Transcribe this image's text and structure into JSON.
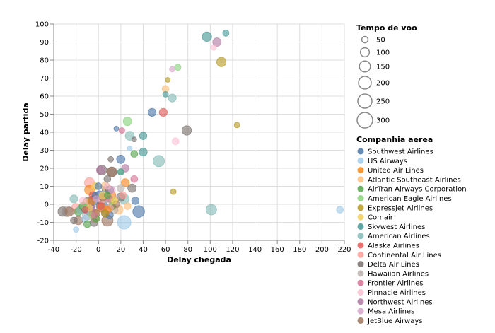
{
  "chart_data": {
    "type": "scatter",
    "xlabel": "Delay chegada",
    "ylabel": "Delay partida",
    "xlim": [
      -40,
      220
    ],
    "ylim": [
      -20,
      100
    ],
    "x_ticks": [
      -40,
      -20,
      0,
      20,
      40,
      60,
      80,
      100,
      120,
      140,
      160,
      180,
      200,
      220
    ],
    "y_ticks": [
      -20,
      -10,
      0,
      10,
      20,
      30,
      40,
      50,
      60,
      70,
      80,
      90,
      100
    ],
    "grid": true,
    "size_legend": {
      "title": "Tempo de voo",
      "values": [
        50,
        100,
        150,
        200,
        250,
        300
      ]
    },
    "color_legend": {
      "title": "Companhia aerea"
    },
    "series": [
      {
        "name": "Southwest Airlines",
        "color": "#4c78a8",
        "points": [
          [
            -5,
            2,
            120
          ],
          [
            1,
            5,
            100
          ],
          [
            7,
            8,
            90
          ],
          [
            16,
            42,
            30
          ],
          [
            48,
            51,
            80
          ],
          [
            36,
            -4,
            170
          ],
          [
            -8,
            -3,
            160
          ],
          [
            4,
            -1,
            140
          ],
          [
            20,
            25,
            90
          ],
          [
            0,
            10,
            60
          ],
          [
            10,
            -6,
            70
          ],
          [
            -3,
            5,
            50
          ],
          [
            33,
            2,
            70
          ]
        ]
      },
      {
        "name": "US Airways",
        "color": "#9ecae9",
        "points": [
          [
            216,
            -3,
            60
          ],
          [
            -20,
            -14,
            40
          ],
          [
            23,
            -10,
            230
          ],
          [
            -12,
            -8,
            60
          ],
          [
            3,
            -2,
            90
          ],
          [
            28,
            31,
            30
          ],
          [
            4,
            5,
            80
          ]
        ]
      },
      {
        "name": "United Air Lines",
        "color": "#f58518",
        "points": [
          [
            -8,
            8,
            120
          ],
          [
            3,
            -2,
            90
          ],
          [
            12,
            5,
            80
          ],
          [
            -4,
            -5,
            100
          ],
          [
            24,
            12,
            80
          ],
          [
            8,
            -3,
            60
          ],
          [
            -6,
            2,
            80
          ]
        ]
      },
      {
        "name": "Atlantic Southeast Airlines",
        "color": "#ffbf79",
        "points": [
          [
            60,
            64,
            60
          ],
          [
            -10,
            0,
            140
          ],
          [
            18,
            -3,
            100
          ],
          [
            6,
            10,
            90
          ],
          [
            -3,
            -8,
            80
          ],
          [
            14,
            2,
            70
          ],
          [
            26,
            -1,
            60
          ]
        ]
      },
      {
        "name": "AirTran Airways Corporation",
        "color": "#54a24b",
        "points": [
          [
            -10,
            -11,
            60
          ],
          [
            -18,
            -4,
            80
          ],
          [
            -2,
            -8,
            60
          ],
          [
            12,
            -1,
            70
          ],
          [
            32,
            28,
            60
          ],
          [
            -14,
            -1,
            70
          ],
          [
            8,
            5,
            50
          ]
        ]
      },
      {
        "name": "American Eagle Airlines",
        "color": "#88d27a",
        "points": [
          [
            26,
            46,
            90
          ],
          [
            71,
            76,
            50
          ],
          [
            20,
            18,
            50
          ],
          [
            -6,
            -6,
            50
          ],
          [
            12,
            2,
            70
          ],
          [
            -12,
            -2,
            50
          ]
        ]
      },
      {
        "name": "Expressjet Airlines",
        "color": "#b79a20",
        "points": [
          [
            110,
            79,
            110
          ],
          [
            124,
            44,
            40
          ],
          [
            67,
            7,
            40
          ],
          [
            62,
            69,
            30
          ],
          [
            6,
            -5,
            60
          ]
        ]
      },
      {
        "name": "Comair",
        "color": "#f2cf5b",
        "points": [
          [
            -3,
            10,
            70
          ],
          [
            4,
            5,
            70
          ],
          [
            14,
            2,
            50
          ],
          [
            -8,
            -2,
            50
          ]
        ]
      },
      {
        "name": "Skywest Airlines",
        "color": "#439894",
        "points": [
          [
            97,
            93,
            110
          ],
          [
            114,
            95,
            50
          ],
          [
            40,
            38,
            70
          ],
          [
            40,
            29,
            80
          ],
          [
            -12,
            -3,
            60
          ],
          [
            20,
            18,
            50
          ],
          [
            60,
            61,
            40
          ]
        ]
      },
      {
        "name": "American Airlines",
        "color": "#83bcb6",
        "points": [
          [
            101,
            -3,
            140
          ],
          [
            54,
            24,
            160
          ],
          [
            28,
            38,
            100
          ],
          [
            66,
            59,
            80
          ],
          [
            -22,
            3,
            80
          ],
          [
            23,
            3,
            120
          ],
          [
            -16,
            -3,
            80
          ]
        ]
      },
      {
        "name": "Alaska Airlines",
        "color": "#e45756",
        "points": [
          [
            58,
            51,
            80
          ],
          [
            -5,
            5,
            70
          ],
          [
            2,
            -1,
            60
          ],
          [
            -12,
            -3,
            50
          ]
        ]
      },
      {
        "name": "Continental Air Lines",
        "color": "#ff9d98",
        "points": [
          [
            -8,
            12,
            130
          ],
          [
            -20,
            -2,
            100
          ],
          [
            3,
            3,
            80
          ],
          [
            10,
            -2,
            70
          ],
          [
            22,
            5,
            60
          ]
        ]
      },
      {
        "name": "Delta Air Lines",
        "color": "#79706e",
        "points": [
          [
            79,
            41,
            110
          ],
          [
            -32,
            -4,
            110
          ],
          [
            3,
            19,
            120
          ],
          [
            12,
            18,
            120
          ],
          [
            30,
            9,
            90
          ],
          [
            -9,
            1,
            150
          ],
          [
            2,
            -1,
            100
          ],
          [
            -4,
            -10,
            80
          ],
          [
            10,
            8,
            80
          ],
          [
            6,
            -5,
            70
          ],
          [
            -22,
            -9,
            60
          ],
          [
            32,
            36,
            30
          ],
          [
            11,
            25,
            40
          ],
          [
            20,
            4,
            90
          ],
          [
            8,
            14,
            60
          ]
        ]
      },
      {
        "name": "Hawaiian Airlines",
        "color": "#bab0ac",
        "points": [
          [
            -28,
            -4,
            140
          ],
          [
            -10,
            -6,
            120
          ],
          [
            6,
            3,
            90
          ],
          [
            14,
            -3,
            80
          ],
          [
            20,
            9,
            70
          ]
        ]
      },
      {
        "name": "Frontier Airlines",
        "color": "#d67195",
        "points": [
          [
            32,
            14,
            60
          ],
          [
            21,
            41,
            40
          ],
          [
            10,
            3,
            60
          ],
          [
            -4,
            -6,
            50
          ]
        ]
      },
      {
        "name": "Pinnacle Airlines",
        "color": "#fcbfd2",
        "points": [
          [
            69,
            35,
            60
          ],
          [
            103,
            87,
            40
          ],
          [
            -14,
            2,
            60
          ],
          [
            8,
            10,
            50
          ]
        ]
      },
      {
        "name": "Northwest Airlines",
        "color": "#b279a2",
        "points": [
          [
            106,
            90,
            90
          ],
          [
            2,
            19,
            90
          ],
          [
            24,
            20,
            70
          ],
          [
            -6,
            -2,
            60
          ]
        ]
      },
      {
        "name": "Mesa Airlines",
        "color": "#d6a5c9",
        "points": [
          [
            66,
            75,
            40
          ],
          [
            12,
            8,
            60
          ],
          [
            -2,
            3,
            50
          ]
        ]
      },
      {
        "name": "JetBlue Airways",
        "color": "#9d755d",
        "points": [
          [
            8,
            -9,
            160
          ],
          [
            12,
            18,
            110
          ],
          [
            -26,
            -4,
            100
          ],
          [
            -18,
            -9,
            90
          ],
          [
            4,
            4,
            80
          ],
          [
            -2,
            -5,
            70
          ],
          [
            16,
            0,
            60
          ]
        ]
      }
    ]
  }
}
